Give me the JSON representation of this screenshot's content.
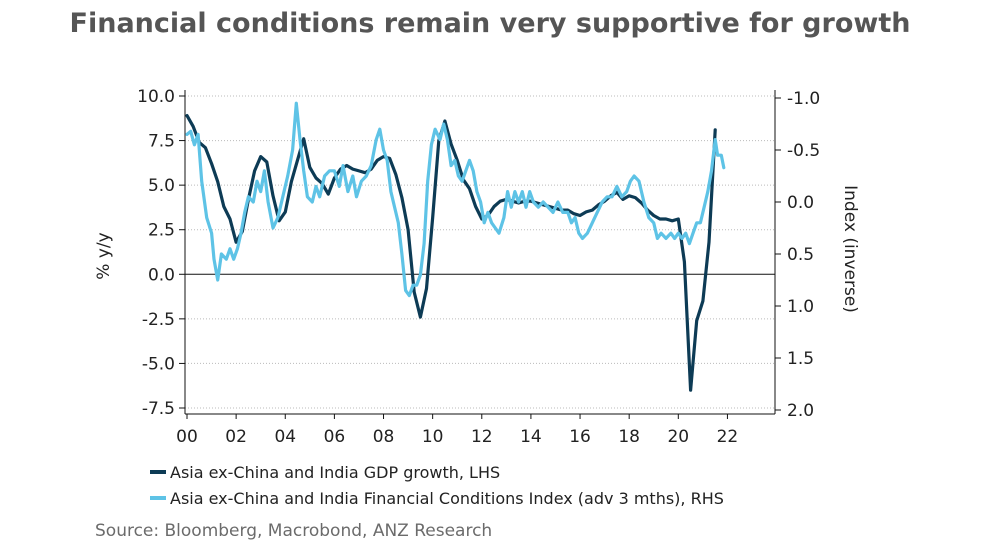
{
  "title": "Financial conditions remain very supportive for growth",
  "source": "Source:  Bloomberg, Macrobond, ANZ Research",
  "chart_data": {
    "type": "line",
    "ylabel": "% y/y",
    "y2label": "Index (inverse)",
    "xlim": [
      0,
      23
    ],
    "ylim": [
      -7.5,
      10.0
    ],
    "y2lim": [
      2.0,
      -1.0
    ],
    "x_ticks": [
      "00",
      "02",
      "04",
      "06",
      "08",
      "10",
      "12",
      "14",
      "16",
      "18",
      "20",
      "22"
    ],
    "y_ticks": [
      "10.0",
      "7.5",
      "5.0",
      "2.5",
      "0.0",
      "-2.5",
      "-5.0",
      "-7.5"
    ],
    "y2_ticks": [
      "-1.0",
      "-0.5",
      "0.0",
      "0.5",
      "1.0",
      "1.5",
      "2.0"
    ],
    "grid": "horizontal dotted",
    "legend_position": "bottom",
    "series": [
      {
        "name": "Asia ex-China and India GDP growth, LHS",
        "color": "#0d3b55",
        "axis": "left",
        "points": [
          [
            0.0,
            8.9
          ],
          [
            0.25,
            8.3
          ],
          [
            0.5,
            7.4
          ],
          [
            0.75,
            7.1
          ],
          [
            1.0,
            6.2
          ],
          [
            1.25,
            5.2
          ],
          [
            1.5,
            3.8
          ],
          [
            1.75,
            3.1
          ],
          [
            2.0,
            1.8
          ],
          [
            2.25,
            2.4
          ],
          [
            2.5,
            4.2
          ],
          [
            2.75,
            5.8
          ],
          [
            3.0,
            6.6
          ],
          [
            3.25,
            6.3
          ],
          [
            3.5,
            4.4
          ],
          [
            3.75,
            3.0
          ],
          [
            4.0,
            3.5
          ],
          [
            4.25,
            5.2
          ],
          [
            4.5,
            6.4
          ],
          [
            4.75,
            7.6
          ],
          [
            5.0,
            6.0
          ],
          [
            5.25,
            5.4
          ],
          [
            5.5,
            5.1
          ],
          [
            5.75,
            4.5
          ],
          [
            6.0,
            5.4
          ],
          [
            6.25,
            5.9
          ],
          [
            6.5,
            6.1
          ],
          [
            6.75,
            5.9
          ],
          [
            7.0,
            5.8
          ],
          [
            7.25,
            5.7
          ],
          [
            7.5,
            5.9
          ],
          [
            7.75,
            6.4
          ],
          [
            8.0,
            6.6
          ],
          [
            8.25,
            6.5
          ],
          [
            8.5,
            5.6
          ],
          [
            8.75,
            4.3
          ],
          [
            9.0,
            2.5
          ],
          [
            9.25,
            -1.0
          ],
          [
            9.5,
            -2.4
          ],
          [
            9.75,
            -0.8
          ],
          [
            10.0,
            3.2
          ],
          [
            10.25,
            7.5
          ],
          [
            10.5,
            8.6
          ],
          [
            10.75,
            7.3
          ],
          [
            11.0,
            6.4
          ],
          [
            11.25,
            5.3
          ],
          [
            11.5,
            4.8
          ],
          [
            11.75,
            3.8
          ],
          [
            12.0,
            3.1
          ],
          [
            12.25,
            3.3
          ],
          [
            12.5,
            3.8
          ],
          [
            12.75,
            4.1
          ],
          [
            13.0,
            4.2
          ],
          [
            13.25,
            4.1
          ],
          [
            13.5,
            4.0
          ],
          [
            13.75,
            4.1
          ],
          [
            14.0,
            4.1
          ],
          [
            14.25,
            4.0
          ],
          [
            14.5,
            3.9
          ],
          [
            14.75,
            3.8
          ],
          [
            15.0,
            3.7
          ],
          [
            15.25,
            3.6
          ],
          [
            15.5,
            3.6
          ],
          [
            15.75,
            3.4
          ],
          [
            16.0,
            3.3
          ],
          [
            16.25,
            3.5
          ],
          [
            16.5,
            3.6
          ],
          [
            16.75,
            3.9
          ],
          [
            17.0,
            4.1
          ],
          [
            17.25,
            4.4
          ],
          [
            17.5,
            4.6
          ],
          [
            17.75,
            4.2
          ],
          [
            18.0,
            4.4
          ],
          [
            18.25,
            4.3
          ],
          [
            18.5,
            4.0
          ],
          [
            18.75,
            3.6
          ],
          [
            19.0,
            3.3
          ],
          [
            19.25,
            3.1
          ],
          [
            19.5,
            3.1
          ],
          [
            19.75,
            3.0
          ],
          [
            20.0,
            3.1
          ],
          [
            20.25,
            0.7
          ],
          [
            20.5,
            -6.5
          ],
          [
            20.75,
            -2.6
          ],
          [
            21.0,
            -1.5
          ],
          [
            21.25,
            1.8
          ],
          [
            21.5,
            8.1
          ]
        ]
      },
      {
        "name": "Asia ex-China and India Financial Conditions Index (adv 3 mths), RHS",
        "color": "#5ec3e6",
        "axis": "right",
        "points": [
          [
            0.0,
            -0.65
          ],
          [
            0.15,
            -0.68
          ],
          [
            0.3,
            -0.55
          ],
          [
            0.45,
            -0.65
          ],
          [
            0.6,
            -0.2
          ],
          [
            0.8,
            0.15
          ],
          [
            1.0,
            0.3
          ],
          [
            1.1,
            0.55
          ],
          [
            1.25,
            0.75
          ],
          [
            1.4,
            0.5
          ],
          [
            1.6,
            0.55
          ],
          [
            1.75,
            0.45
          ],
          [
            1.9,
            0.55
          ],
          [
            2.05,
            0.45
          ],
          [
            2.2,
            0.3
          ],
          [
            2.35,
            0.1
          ],
          [
            2.5,
            -0.05
          ],
          [
            2.7,
            0.0
          ],
          [
            2.85,
            -0.2
          ],
          [
            3.0,
            -0.1
          ],
          [
            3.15,
            -0.3
          ],
          [
            3.3,
            0.0
          ],
          [
            3.5,
            0.25
          ],
          [
            3.7,
            0.15
          ],
          [
            3.9,
            -0.05
          ],
          [
            4.1,
            -0.25
          ],
          [
            4.3,
            -0.5
          ],
          [
            4.45,
            -0.95
          ],
          [
            4.6,
            -0.6
          ],
          [
            4.75,
            -0.3
          ],
          [
            4.9,
            -0.05
          ],
          [
            5.1,
            0.0
          ],
          [
            5.25,
            -0.15
          ],
          [
            5.4,
            -0.05
          ],
          [
            5.6,
            -0.25
          ],
          [
            5.8,
            -0.3
          ],
          [
            6.0,
            -0.3
          ],
          [
            6.2,
            -0.15
          ],
          [
            6.35,
            -0.35
          ],
          [
            6.55,
            -0.1
          ],
          [
            6.75,
            -0.25
          ],
          [
            6.9,
            -0.05
          ],
          [
            7.1,
            -0.2
          ],
          [
            7.3,
            -0.25
          ],
          [
            7.5,
            -0.35
          ],
          [
            7.7,
            -0.6
          ],
          [
            7.85,
            -0.7
          ],
          [
            8.0,
            -0.5
          ],
          [
            8.15,
            -0.4
          ],
          [
            8.3,
            -0.1
          ],
          [
            8.45,
            0.05
          ],
          [
            8.6,
            0.2
          ],
          [
            8.75,
            0.5
          ],
          [
            8.9,
            0.85
          ],
          [
            9.05,
            0.9
          ],
          [
            9.2,
            0.8
          ],
          [
            9.35,
            0.8
          ],
          [
            9.5,
            0.7
          ],
          [
            9.65,
            0.4
          ],
          [
            9.8,
            -0.2
          ],
          [
            9.95,
            -0.55
          ],
          [
            10.1,
            -0.7
          ],
          [
            10.3,
            -0.6
          ],
          [
            10.45,
            -0.75
          ],
          [
            10.6,
            -0.6
          ],
          [
            10.75,
            -0.35
          ],
          [
            10.9,
            -0.4
          ],
          [
            11.05,
            -0.25
          ],
          [
            11.2,
            -0.2
          ],
          [
            11.35,
            -0.3
          ],
          [
            11.5,
            -0.4
          ],
          [
            11.65,
            -0.3
          ],
          [
            11.8,
            -0.1
          ],
          [
            11.95,
            0.0
          ],
          [
            12.1,
            0.2
          ],
          [
            12.25,
            0.1
          ],
          [
            12.4,
            0.2
          ],
          [
            12.55,
            0.25
          ],
          [
            12.7,
            0.3
          ],
          [
            12.9,
            0.15
          ],
          [
            13.05,
            -0.1
          ],
          [
            13.2,
            0.05
          ],
          [
            13.35,
            -0.1
          ],
          [
            13.5,
            0.0
          ],
          [
            13.65,
            -0.1
          ],
          [
            13.8,
            0.05
          ],
          [
            13.95,
            -0.1
          ],
          [
            14.1,
            0.0
          ],
          [
            14.3,
            0.05
          ],
          [
            14.5,
            0.0
          ],
          [
            14.7,
            0.05
          ],
          [
            14.9,
            0.1
          ],
          [
            15.1,
            0.0
          ],
          [
            15.3,
            0.1
          ],
          [
            15.5,
            0.1
          ],
          [
            15.65,
            0.2
          ],
          [
            15.8,
            0.15
          ],
          [
            15.95,
            0.3
          ],
          [
            16.1,
            0.35
          ],
          [
            16.3,
            0.3
          ],
          [
            16.5,
            0.2
          ],
          [
            16.7,
            0.1
          ],
          [
            16.9,
            0.0
          ],
          [
            17.1,
            -0.05
          ],
          [
            17.3,
            -0.05
          ],
          [
            17.5,
            -0.15
          ],
          [
            17.7,
            -0.05
          ],
          [
            17.9,
            -0.1
          ],
          [
            18.05,
            -0.2
          ],
          [
            18.2,
            -0.25
          ],
          [
            18.4,
            -0.2
          ],
          [
            18.6,
            0.0
          ],
          [
            18.8,
            0.15
          ],
          [
            19.0,
            0.2
          ],
          [
            19.15,
            0.35
          ],
          [
            19.3,
            0.3
          ],
          [
            19.5,
            0.35
          ],
          [
            19.7,
            0.3
          ],
          [
            19.85,
            0.35
          ],
          [
            20.0,
            0.3
          ],
          [
            20.15,
            0.35
          ],
          [
            20.3,
            0.3
          ],
          [
            20.45,
            0.4
          ],
          [
            20.6,
            0.3
          ],
          [
            20.75,
            0.2
          ],
          [
            20.9,
            0.2
          ],
          [
            21.05,
            0.05
          ],
          [
            21.2,
            -0.1
          ],
          [
            21.35,
            -0.3
          ],
          [
            21.5,
            -0.6
          ],
          [
            21.6,
            -0.45
          ],
          [
            21.75,
            -0.45
          ],
          [
            21.85,
            -0.33
          ]
        ]
      }
    ]
  }
}
